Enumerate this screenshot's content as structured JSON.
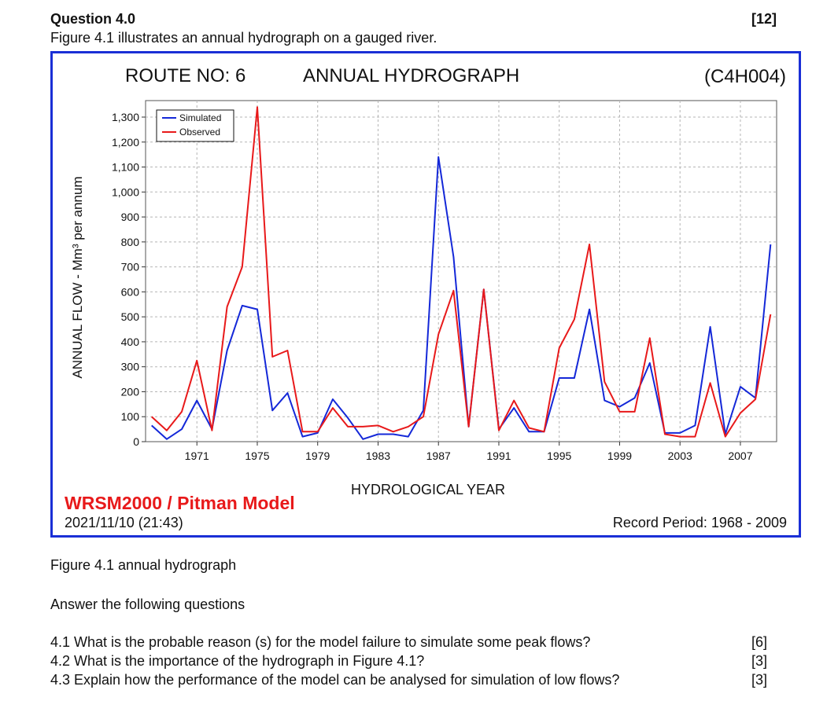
{
  "question": {
    "title": "Question 4.0",
    "marks": "[12]",
    "intro": "Figure 4.1 illustrates an annual hydrograph on a gauged river."
  },
  "figure": {
    "route": "ROUTE NO: 6",
    "title": "ANNUAL HYDROGRAPH",
    "station": "(C4H004)",
    "model_label": "WRSM2000 / Pitman Model",
    "model_label_color": "#e8191a",
    "run_timestamp": "2021/11/10 (21:43)",
    "record_period": "Record Period:  1968 - 2009",
    "frame_color": "#1a2fd6",
    "caption": "Figure 4.1 annual hydrograph"
  },
  "chart_data": {
    "type": "line",
    "title": "ANNUAL HYDROGRAPH",
    "xlabel": "HYDROLOGICAL YEAR",
    "ylabel": "ANNUAL FLOW - Mm³ per annum",
    "xlim": [
      1967.6,
      2009.4
    ],
    "ylim": [
      0,
      1300
    ],
    "yticks": [
      0,
      100,
      200,
      300,
      400,
      500,
      600,
      700,
      800,
      900,
      1000,
      1100,
      1200,
      1300
    ],
    "ytick_labels": [
      "0",
      "100",
      "200",
      "300",
      "400",
      "500",
      "600",
      "700",
      "800",
      "900",
      "1,000",
      "1,100",
      "1,200",
      "1,300"
    ],
    "xticks": [
      1971,
      1975,
      1979,
      1983,
      1987,
      1991,
      1995,
      1999,
      2003,
      2007
    ],
    "xtick_labels": [
      "1971",
      "1975",
      "1979",
      "1983",
      "1987",
      "1991",
      "1995",
      "1999",
      "2003",
      "2007"
    ],
    "grid": true,
    "legend_position": "top-left",
    "x": [
      1968,
      1969,
      1970,
      1971,
      1972,
      1973,
      1974,
      1975,
      1976,
      1977,
      1978,
      1979,
      1980,
      1981,
      1982,
      1983,
      1984,
      1985,
      1986,
      1987,
      1988,
      1989,
      1990,
      1991,
      1992,
      1993,
      1994,
      1995,
      1996,
      1997,
      1998,
      1999,
      2000,
      2001,
      2002,
      2003,
      2004,
      2005,
      2006,
      2007,
      2008,
      2009
    ],
    "series": [
      {
        "name": "Simulated",
        "color": "#1428d8",
        "values": [
          65,
          10,
          50,
          165,
          50,
          365,
          545,
          530,
          125,
          195,
          20,
          35,
          170,
          95,
          10,
          30,
          30,
          20,
          125,
          1140,
          740,
          60,
          610,
          50,
          135,
          40,
          40,
          255,
          255,
          530,
          165,
          140,
          175,
          315,
          35,
          35,
          65,
          460,
          30,
          220,
          175,
          790
        ]
      },
      {
        "name": "Observed",
        "color": "#e8191a",
        "values": [
          100,
          45,
          120,
          325,
          45,
          540,
          700,
          1340,
          340,
          365,
          40,
          40,
          135,
          60,
          60,
          65,
          40,
          60,
          100,
          430,
          605,
          60,
          610,
          45,
          165,
          55,
          40,
          375,
          490,
          790,
          240,
          120,
          120,
          415,
          30,
          20,
          20,
          235,
          20,
          115,
          170,
          510
        ]
      }
    ]
  },
  "questions": [
    {
      "text": "4.1 What is the probable reason (s) for the model failure to simulate some peak flows?",
      "marks": "[6]"
    },
    {
      "text": "4.2 What is the importance of the hydrograph in Figure 4.1?",
      "marks": "[3]"
    },
    {
      "text": "4.3 Explain how the performance of the model can be analysed for simulation of low flows?",
      "marks": "[3]"
    }
  ],
  "answer_prompt": "Answer the following questions"
}
